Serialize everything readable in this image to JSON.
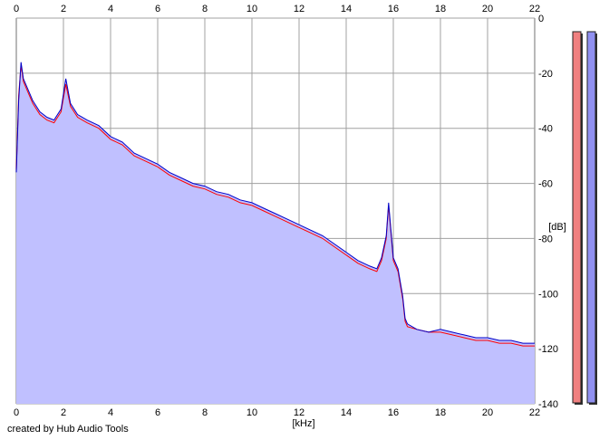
{
  "chart_data": {
    "type": "area",
    "xlabel": "[kHz]",
    "ylabel": "[dB]",
    "xlim": [
      0,
      22
    ],
    "ylim": [
      -140,
      0
    ],
    "x_ticks": [
      0,
      2,
      4,
      6,
      8,
      10,
      12,
      14,
      16,
      18,
      20,
      22
    ],
    "y_ticks": [
      0,
      -20,
      -40,
      -60,
      -80,
      -100,
      -120,
      -140
    ],
    "grid": true,
    "colors": {
      "fill": "#c0c0ff",
      "left_channel": "#ff0000",
      "right_channel": "#0000c8",
      "grid": "#a0a0a0",
      "meter_left": "#f08080",
      "meter_right": "#9090f0"
    },
    "series": [
      {
        "x": [
          0,
          0.1,
          0.2,
          0.3,
          0.5,
          0.7,
          1.0,
          1.3,
          1.6,
          1.9,
          2.1,
          2.3,
          2.6,
          3.0,
          3.5,
          4.0,
          4.5,
          5.0,
          5.5,
          6.0,
          6.5,
          7.0,
          7.5,
          8.0,
          8.5,
          9.0,
          9.5,
          10.0,
          10.5,
          11.0,
          11.5,
          12.0,
          12.5,
          13.0,
          13.5,
          14.0,
          14.5,
          15.0,
          15.3,
          15.5,
          15.7,
          15.8,
          15.9,
          16.0,
          16.2,
          16.4,
          16.5,
          16.6,
          17.0,
          17.5,
          18.0,
          18.5,
          19.0,
          19.5,
          20.0,
          20.5,
          21.0,
          21.5,
          22.0
        ],
        "values": [
          -55,
          -28,
          -17,
          -23,
          -27,
          -31,
          -35,
          -37,
          -38,
          -34,
          -24,
          -32,
          -36,
          -38,
          -40,
          -44,
          -46,
          -50,
          -52,
          -54,
          -57,
          -59,
          -61,
          -62,
          -64,
          -65,
          -67,
          -68,
          -70,
          -72,
          -74,
          -76,
          -78,
          -80,
          -83,
          -86,
          -89,
          -91,
          -92,
          -88,
          -80,
          -68,
          -78,
          -88,
          -92,
          -102,
          -110,
          -112,
          -113,
          -114,
          -114,
          -115,
          -116,
          -117,
          -117,
          -118,
          -118,
          -119,
          -119
        ]
      },
      {
        "x": [
          0,
          0.1,
          0.2,
          0.3,
          0.5,
          0.7,
          1.0,
          1.3,
          1.6,
          1.9,
          2.1,
          2.3,
          2.6,
          3.0,
          3.5,
          4.0,
          4.5,
          5.0,
          5.5,
          6.0,
          6.5,
          7.0,
          7.5,
          8.0,
          8.5,
          9.0,
          9.5,
          10.0,
          10.5,
          11.0,
          11.5,
          12.0,
          12.5,
          13.0,
          13.5,
          14.0,
          14.5,
          15.0,
          15.3,
          15.5,
          15.7,
          15.8,
          15.9,
          16.0,
          16.2,
          16.4,
          16.5,
          16.6,
          17.0,
          17.5,
          18.0,
          18.5,
          19.0,
          19.5,
          20.0,
          20.5,
          21.0,
          21.5,
          22.0
        ],
        "values": [
          -56,
          -30,
          -16,
          -22,
          -26,
          -30,
          -34,
          -36,
          -37,
          -33,
          -22,
          -31,
          -35,
          -37,
          -39,
          -43,
          -45,
          -49,
          -51,
          -53,
          -56,
          -58,
          -60,
          -61,
          -63,
          -64,
          -66,
          -67,
          -69,
          -71,
          -73,
          -75,
          -77,
          -79,
          -82,
          -85,
          -88,
          -90,
          -91,
          -87,
          -79,
          -67,
          -77,
          -87,
          -91,
          -101,
          -109,
          -111,
          -113,
          -114,
          -113,
          -114,
          -115,
          -116,
          -116,
          -117,
          -117,
          -118,
          -118
        ]
      }
    ],
    "meters": {
      "left_level": 1.0,
      "right_level": 1.0
    }
  },
  "footer": {
    "credit": "created by Hub Audio Tools"
  }
}
